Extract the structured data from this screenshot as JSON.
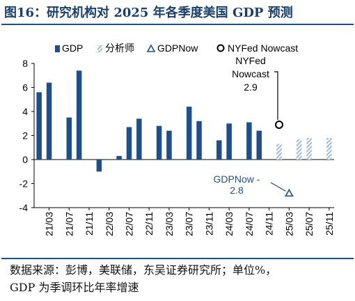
{
  "figure": {
    "title": "图16：研究机构对 2025 年各季度美国 GDP 预测",
    "source_line1": "数据来源：彭博，美联储，东吴证券研究所；单位%，",
    "source_line2": "GDP 为季调环比年率增速"
  },
  "colors": {
    "title": "#1a3f6b",
    "rule": "#1f4f82",
    "gdp_bar": "#1f4e8c",
    "forecast_hatch": "#9db9e3",
    "gdpnow_marker": "#1f4e8c",
    "nyfed_marker": "#000000",
    "annotation_gdpnow": "#1f4e8c",
    "annotation_nyfed": "#000000"
  },
  "chart_data": {
    "type": "bar",
    "ylim": [
      -4,
      8
    ],
    "yticks": [
      -4,
      -2,
      0,
      2,
      4,
      6,
      8
    ],
    "grid": false,
    "legend_position": "top",
    "categories": [
      "21/01",
      "21/03",
      "21/05",
      "21/07",
      "21/09",
      "21/11",
      "22/01",
      "22/03",
      "22/05",
      "22/07",
      "22/09",
      "22/11",
      "23/01",
      "23/03",
      "23/05",
      "23/07",
      "23/09",
      "23/11",
      "24/01",
      "24/03",
      "24/05",
      "24/07",
      "24/09",
      "24/11",
      "25/01",
      "25/03",
      "25/05",
      "25/07",
      "25/09",
      "25/11"
    ],
    "x_tick_labels": [
      "21/03",
      "21/07",
      "21/11",
      "22/03",
      "22/07",
      "22/11",
      "23/03",
      "23/07",
      "23/11",
      "24/03",
      "24/07",
      "24/11",
      "25/03",
      "25/07",
      "25/11"
    ],
    "series": [
      {
        "name": "GDP",
        "style": "solid",
        "points": [
          {
            "x": "21/01",
            "y": 5.6
          },
          {
            "x": "21/03",
            "y": 6.4
          },
          {
            "x": "21/07",
            "y": 3.5
          },
          {
            "x": "21/09",
            "y": 7.4
          },
          {
            "x": "22/01",
            "y": -1.0
          },
          {
            "x": "22/05",
            "y": 0.3
          },
          {
            "x": "22/07",
            "y": 2.7
          },
          {
            "x": "22/09",
            "y": 3.4
          },
          {
            "x": "23/01",
            "y": 2.8
          },
          {
            "x": "23/03",
            "y": 2.4
          },
          {
            "x": "23/07",
            "y": 4.4
          },
          {
            "x": "23/09",
            "y": 3.2
          },
          {
            "x": "24/01",
            "y": 1.6
          },
          {
            "x": "24/03",
            "y": 3.0
          },
          {
            "x": "24/07",
            "y": 3.1
          },
          {
            "x": "24/09",
            "y": 2.4
          }
        ]
      },
      {
        "name": "分析师",
        "style": "hatched",
        "points": [
          {
            "x": "25/01",
            "y": 1.3
          },
          {
            "x": "25/05",
            "y": 1.7
          },
          {
            "x": "25/07",
            "y": 1.8
          },
          {
            "x": "25/11",
            "y": 1.8
          }
        ]
      },
      {
        "name": "GDPNow",
        "style": "triangle",
        "points": [
          {
            "x": "25/03",
            "y": -2.8
          }
        ]
      },
      {
        "name": "NYFed Nowcast",
        "style": "circle",
        "points": [
          {
            "x": "25/01",
            "y": 2.9
          }
        ]
      }
    ],
    "annotations": [
      {
        "series": "NYFed Nowcast",
        "lines": [
          "NYFed",
          "Nowcast",
          "2.9"
        ]
      },
      {
        "series": "GDPNow",
        "lines": [
          "GDPNow -",
          "2.8"
        ]
      }
    ]
  }
}
